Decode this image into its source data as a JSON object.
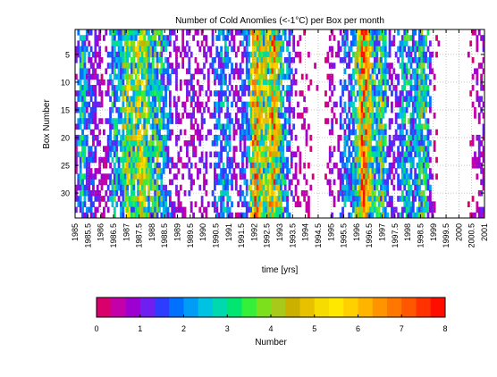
{
  "chart_data": {
    "type": "heatmap",
    "title": "Number of Cold Anomlies (<-1°C) per Box per month",
    "xlabel": "time [yrs]",
    "ylabel": "Box Number",
    "xlim": [
      1985,
      2001
    ],
    "ylim": [
      1,
      34
    ],
    "grid": true,
    "x_ticks": [
      1985,
      1985.5,
      1986,
      1986.5,
      1987,
      1987.5,
      1988,
      1988.5,
      1989,
      1989.5,
      1990,
      1990.5,
      1991,
      1991.5,
      1992,
      1992.5,
      1993,
      1993.5,
      1994,
      1994.5,
      1995,
      1995.5,
      1996,
      1996.5,
      1997,
      1997.5,
      1998,
      1998.5,
      1999,
      1999.5,
      2000,
      2000.5,
      2001
    ],
    "y_ticks": [
      5,
      10,
      15,
      20,
      25,
      30
    ],
    "colorbar": {
      "label": "Number",
      "range": [
        0,
        8
      ],
      "ticks": [
        0,
        1,
        2,
        3,
        4,
        5,
        6,
        7,
        8
      ],
      "colors": [
        "#d9006e",
        "#c400a8",
        "#9f00d2",
        "#6f1ff0",
        "#2e3cff",
        "#0070ff",
        "#009cf6",
        "#00c2e2",
        "#00d8b0",
        "#00e670",
        "#34f03a",
        "#7ce01c",
        "#a8c81a",
        "#cbb000",
        "#e8c200",
        "#f6dc00",
        "#ffe800",
        "#ffd000",
        "#ffb400",
        "#ff9400",
        "#ff7600",
        "#ff5600",
        "#ff3200",
        "#ff0e00"
      ]
    },
    "column_profile": [
      {
        "x": 1985.0,
        "v": 0.4
      },
      {
        "x": 1985.25,
        "v": 2.8
      },
      {
        "x": 1985.5,
        "v": 1.5
      },
      {
        "x": 1985.75,
        "v": 1.1
      },
      {
        "x": 1986.0,
        "v": 0.6
      },
      {
        "x": 1986.25,
        "v": 0.7
      },
      {
        "x": 1986.5,
        "v": 2.6
      },
      {
        "x": 1986.75,
        "v": 1.8
      },
      {
        "x": 1987.0,
        "v": 4.2
      },
      {
        "x": 1987.25,
        "v": 3.0
      },
      {
        "x": 1987.5,
        "v": 4.4
      },
      {
        "x": 1987.75,
        "v": 3.6
      },
      {
        "x": 1988.0,
        "v": 2.6
      },
      {
        "x": 1988.25,
        "v": 3.2
      },
      {
        "x": 1988.5,
        "v": 2.0
      },
      {
        "x": 1988.75,
        "v": 1.2
      },
      {
        "x": 1989.0,
        "v": 0.8
      },
      {
        "x": 1989.25,
        "v": 0.5
      },
      {
        "x": 1989.5,
        "v": 1.2
      },
      {
        "x": 1989.75,
        "v": 0.6
      },
      {
        "x": 1990.0,
        "v": 1.0
      },
      {
        "x": 1990.25,
        "v": 0.7
      },
      {
        "x": 1990.5,
        "v": 1.6
      },
      {
        "x": 1990.75,
        "v": 2.2
      },
      {
        "x": 1991.0,
        "v": 2.0
      },
      {
        "x": 1991.25,
        "v": 0.6
      },
      {
        "x": 1991.5,
        "v": 1.2
      },
      {
        "x": 1991.75,
        "v": 2.0
      },
      {
        "x": 1992.0,
        "v": 5.5
      },
      {
        "x": 1992.25,
        "v": 4.6
      },
      {
        "x": 1992.5,
        "v": 3.4
      },
      {
        "x": 1992.75,
        "v": 5.8
      },
      {
        "x": 1993.0,
        "v": 3.0
      },
      {
        "x": 1993.25,
        "v": 2.0
      },
      {
        "x": 1993.5,
        "v": 1.0
      },
      {
        "x": 1993.75,
        "v": 0.4
      },
      {
        "x": 1994.0,
        "v": 0.6
      },
      {
        "x": 1994.25,
        "v": 0.2
      },
      {
        "x": 1994.5,
        "v": 0.0
      },
      {
        "x": 1994.75,
        "v": 0.0
      },
      {
        "x": 1995.0,
        "v": 1.0
      },
      {
        "x": 1995.25,
        "v": 0.4
      },
      {
        "x": 1995.5,
        "v": 2.0
      },
      {
        "x": 1995.75,
        "v": 1.4
      },
      {
        "x": 1996.0,
        "v": 3.2
      },
      {
        "x": 1996.25,
        "v": 6.0
      },
      {
        "x": 1996.5,
        "v": 4.4
      },
      {
        "x": 1996.75,
        "v": 2.2
      },
      {
        "x": 1997.0,
        "v": 3.6
      },
      {
        "x": 1997.25,
        "v": 1.2
      },
      {
        "x": 1997.5,
        "v": 0.8
      },
      {
        "x": 1997.75,
        "v": 2.0
      },
      {
        "x": 1998.0,
        "v": 2.6
      },
      {
        "x": 1998.25,
        "v": 1.6
      },
      {
        "x": 1998.5,
        "v": 3.0
      },
      {
        "x": 1998.75,
        "v": 2.6
      },
      {
        "x": 1999.0,
        "v": 0.4
      },
      {
        "x": 1999.25,
        "v": 0.0
      },
      {
        "x": 1999.5,
        "v": 0.0
      },
      {
        "x": 1999.75,
        "v": 0.0
      },
      {
        "x": 2000.0,
        "v": 0.0
      },
      {
        "x": 2000.25,
        "v": 0.0
      },
      {
        "x": 2000.5,
        "v": 0.3
      },
      {
        "x": 2000.75,
        "v": 0.8
      }
    ],
    "density_profile": [
      {
        "x": 1985.0,
        "d": 0.45
      },
      {
        "x": 1985.25,
        "d": 0.9
      },
      {
        "x": 1985.5,
        "d": 0.55
      },
      {
        "x": 1985.75,
        "d": 0.5
      },
      {
        "x": 1986.0,
        "d": 0.35
      },
      {
        "x": 1986.25,
        "d": 0.3
      },
      {
        "x": 1986.5,
        "d": 0.85
      },
      {
        "x": 1986.75,
        "d": 0.7
      },
      {
        "x": 1987.0,
        "d": 0.95
      },
      {
        "x": 1987.25,
        "d": 0.9
      },
      {
        "x": 1987.5,
        "d": 0.95
      },
      {
        "x": 1987.75,
        "d": 0.9
      },
      {
        "x": 1988.0,
        "d": 0.85
      },
      {
        "x": 1988.25,
        "d": 0.9
      },
      {
        "x": 1988.5,
        "d": 0.75
      },
      {
        "x": 1988.75,
        "d": 0.5
      },
      {
        "x": 1989.0,
        "d": 0.4
      },
      {
        "x": 1989.25,
        "d": 0.3
      },
      {
        "x": 1989.5,
        "d": 0.5
      },
      {
        "x": 1989.75,
        "d": 0.3
      },
      {
        "x": 1990.0,
        "d": 0.45
      },
      {
        "x": 1990.25,
        "d": 0.35
      },
      {
        "x": 1990.5,
        "d": 0.6
      },
      {
        "x": 1990.75,
        "d": 0.75
      },
      {
        "x": 1991.0,
        "d": 0.7
      },
      {
        "x": 1991.25,
        "d": 0.3
      },
      {
        "x": 1991.5,
        "d": 0.5
      },
      {
        "x": 1991.75,
        "d": 0.7
      },
      {
        "x": 1992.0,
        "d": 1.0
      },
      {
        "x": 1992.25,
        "d": 1.0
      },
      {
        "x": 1992.5,
        "d": 0.95
      },
      {
        "x": 1992.75,
        "d": 1.0
      },
      {
        "x": 1993.0,
        "d": 0.9
      },
      {
        "x": 1993.25,
        "d": 0.7
      },
      {
        "x": 1993.5,
        "d": 0.45
      },
      {
        "x": 1993.75,
        "d": 0.2
      },
      {
        "x": 1994.0,
        "d": 0.3
      },
      {
        "x": 1994.25,
        "d": 0.1
      },
      {
        "x": 1994.5,
        "d": 0.0
      },
      {
        "x": 1994.75,
        "d": 0.0
      },
      {
        "x": 1995.0,
        "d": 0.45
      },
      {
        "x": 1995.25,
        "d": 0.25
      },
      {
        "x": 1995.5,
        "d": 0.7
      },
      {
        "x": 1995.75,
        "d": 0.55
      },
      {
        "x": 1996.0,
        "d": 0.9
      },
      {
        "x": 1996.25,
        "d": 1.0
      },
      {
        "x": 1996.5,
        "d": 1.0
      },
      {
        "x": 1996.75,
        "d": 0.75
      },
      {
        "x": 1997.0,
        "d": 0.9
      },
      {
        "x": 1997.25,
        "d": 0.5
      },
      {
        "x": 1997.5,
        "d": 0.4
      },
      {
        "x": 1997.75,
        "d": 0.7
      },
      {
        "x": 1998.0,
        "d": 0.8
      },
      {
        "x": 1998.25,
        "d": 0.6
      },
      {
        "x": 1998.5,
        "d": 0.9
      },
      {
        "x": 1998.75,
        "d": 0.8
      },
      {
        "x": 1999.0,
        "d": 0.15
      },
      {
        "x": 1999.25,
        "d": 0.0
      },
      {
        "x": 1999.5,
        "d": 0.0
      },
      {
        "x": 1999.75,
        "d": 0.0
      },
      {
        "x": 2000.0,
        "d": 0.0
      },
      {
        "x": 2000.25,
        "d": 0.0
      },
      {
        "x": 2000.5,
        "d": 0.15
      },
      {
        "x": 2000.75,
        "d": 0.45
      }
    ]
  }
}
